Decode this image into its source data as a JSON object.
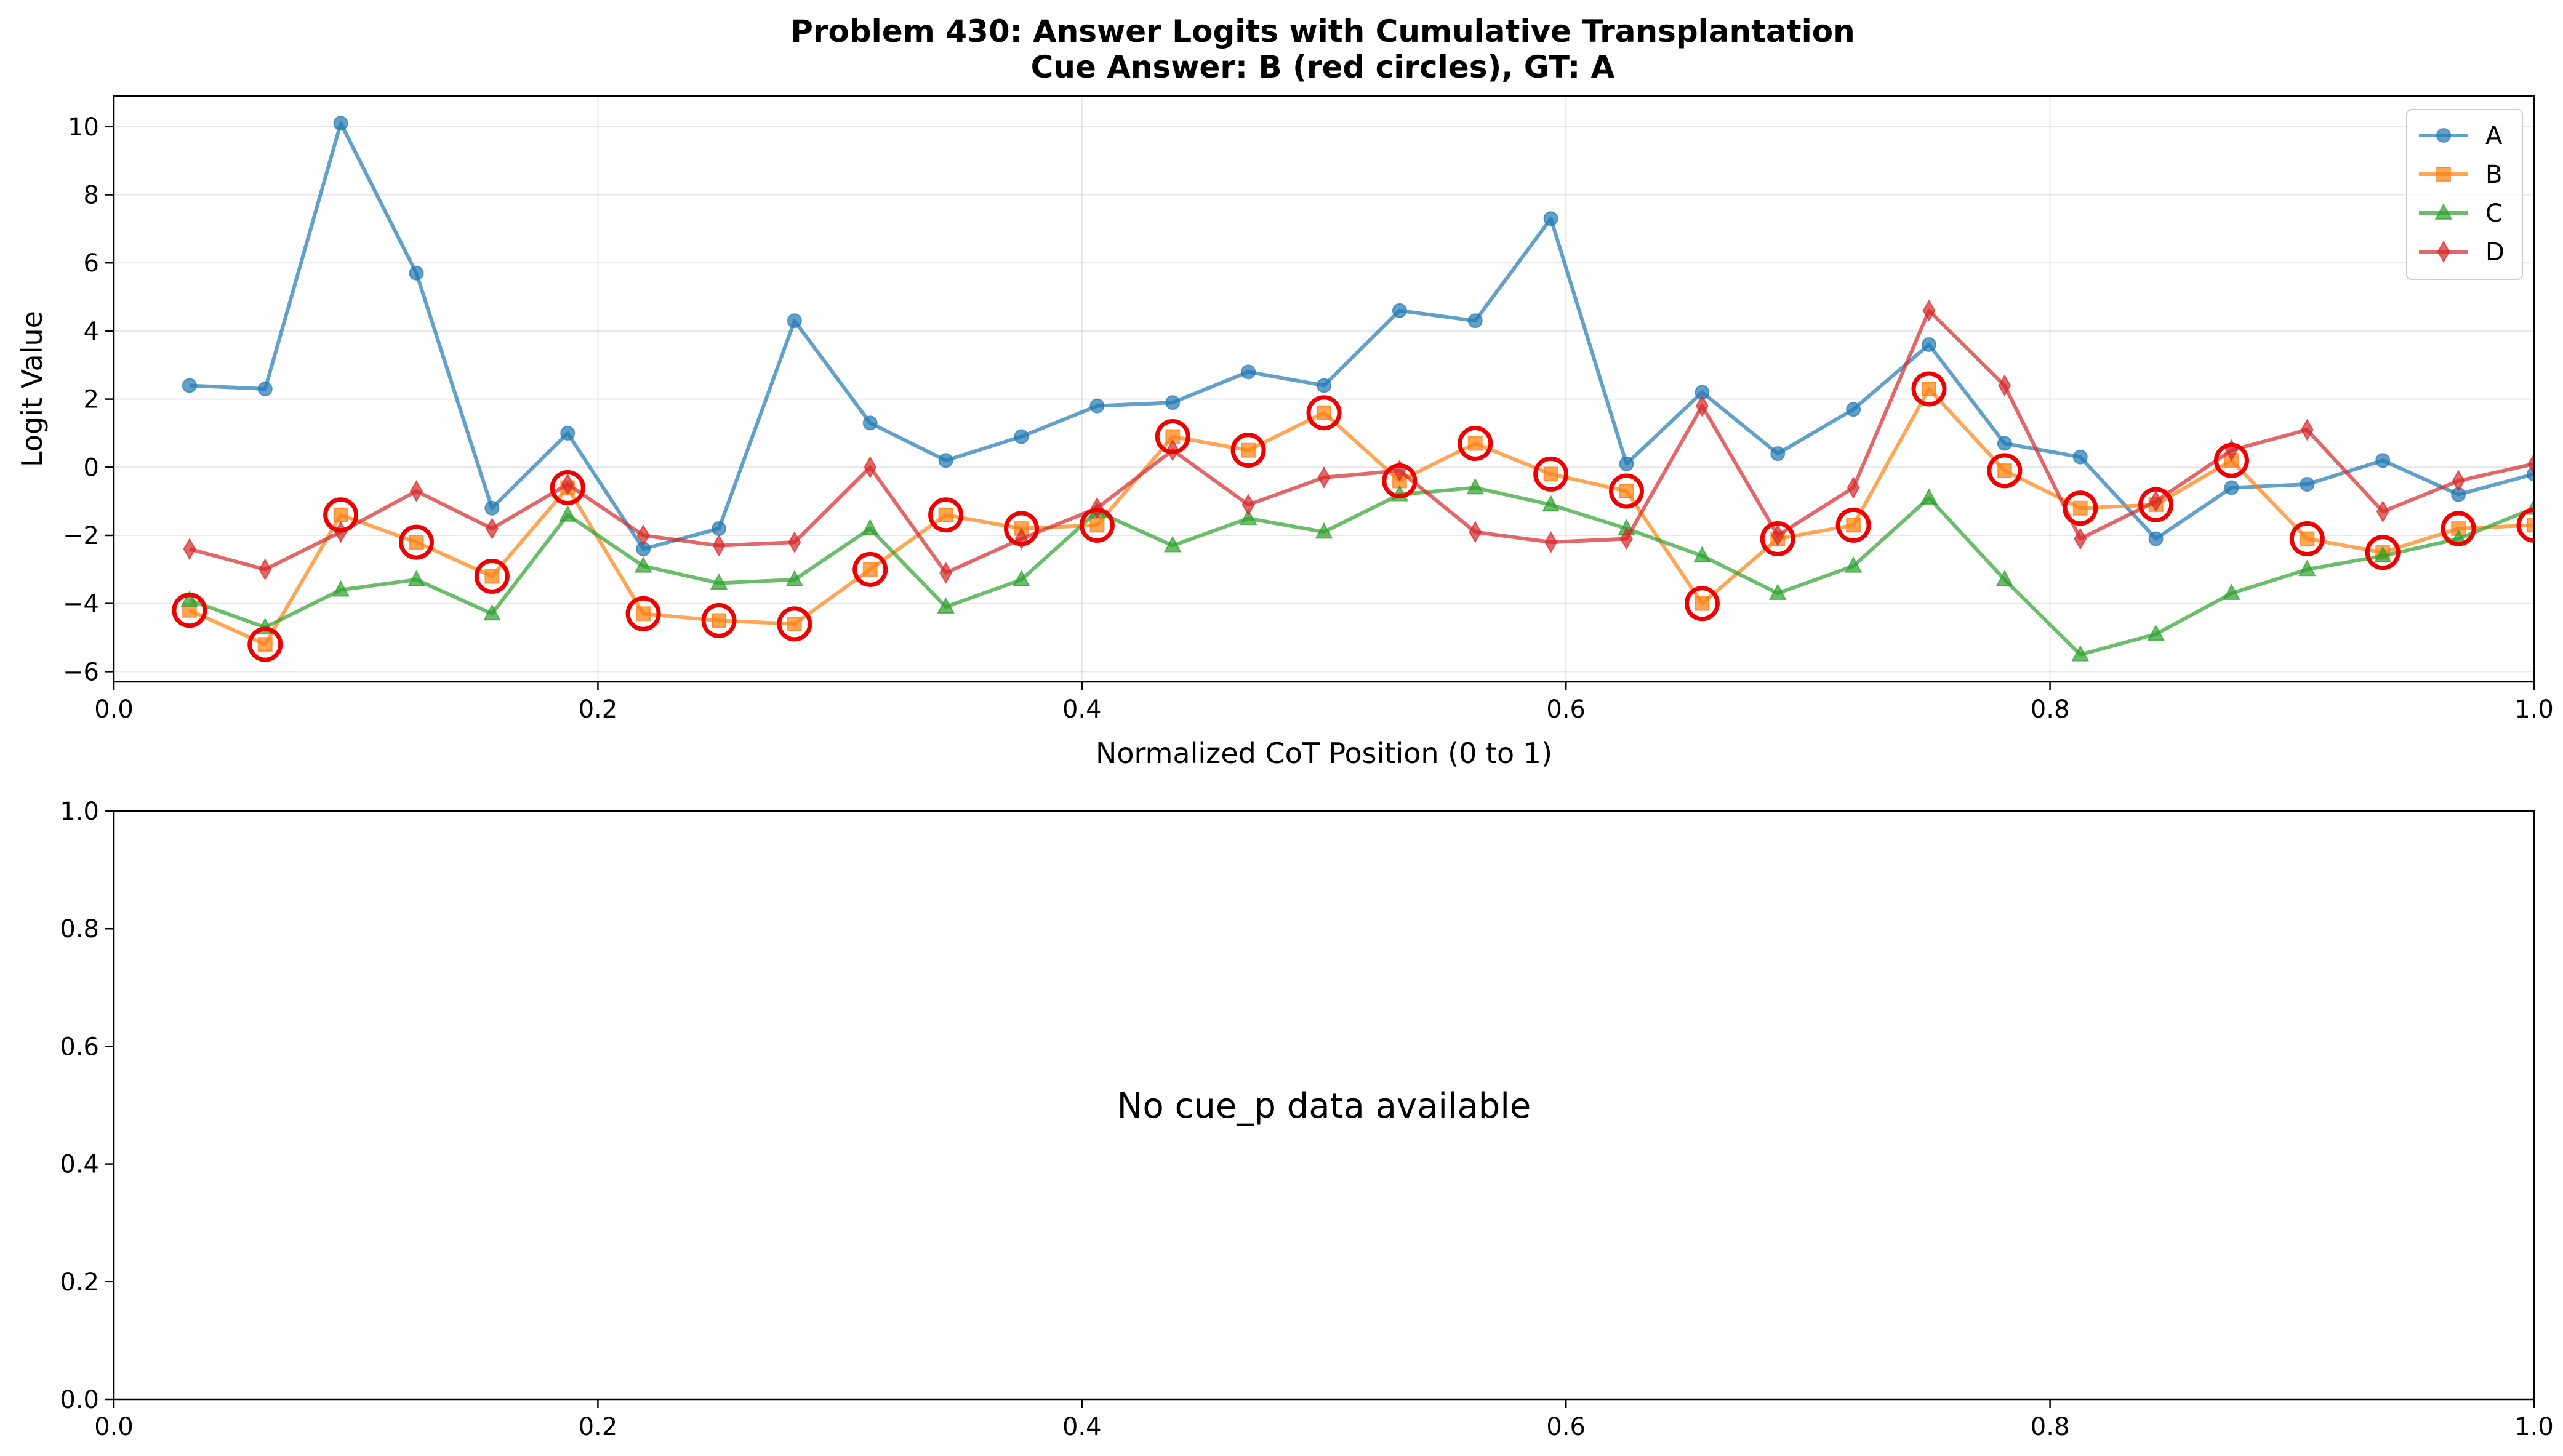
{
  "chart_data": [
    {
      "type": "line",
      "title": "Problem 430: Answer Logits with Cumulative Transplantation",
      "subtitle": "Cue Answer: B (red circles), GT: A",
      "xlabel": "Normalized CoT Position (0 to 1)",
      "ylabel": "Logit Value",
      "xlim": [
        0.0,
        1.0
      ],
      "ylim": [
        -6.3,
        10.9
      ],
      "xticks": [
        0.0,
        0.2,
        0.4,
        0.6,
        0.8,
        1.0
      ],
      "xtick_labels": [
        "0.0",
        "0.2",
        "0.4",
        "0.6",
        "0.8",
        "1.0"
      ],
      "yticks": [
        -6,
        -4,
        -2,
        0,
        2,
        4,
        6,
        8,
        10
      ],
      "ytick_labels": [
        "−6",
        "−4",
        "−2",
        "0",
        "2",
        "4",
        "6",
        "8",
        "10"
      ],
      "grid": true,
      "legend_position": "top-right",
      "x": [
        0.03125,
        0.0625,
        0.09375,
        0.125,
        0.15625,
        0.1875,
        0.21875,
        0.25,
        0.28125,
        0.3125,
        0.34375,
        0.375,
        0.40625,
        0.4375,
        0.46875,
        0.5,
        0.53125,
        0.5625,
        0.59375,
        0.625,
        0.65625,
        0.6875,
        0.71875,
        0.75,
        0.78125,
        0.8125,
        0.84375,
        0.875,
        0.90625,
        0.9375,
        0.96875,
        1.0
      ],
      "series": [
        {
          "name": "A",
          "color": "#1f77b4",
          "marker": "circle",
          "values": [
            2.4,
            2.3,
            10.1,
            5.7,
            -1.2,
            1.0,
            -2.4,
            -1.8,
            4.3,
            1.3,
            0.2,
            0.9,
            1.8,
            1.9,
            2.8,
            2.4,
            4.6,
            4.3,
            7.3,
            0.1,
            2.2,
            0.4,
            1.7,
            3.6,
            0.7,
            0.3,
            -2.1,
            -0.6,
            -0.5,
            0.2,
            -0.8,
            -0.2
          ]
        },
        {
          "name": "B",
          "color": "#ff7f0e",
          "marker": "square",
          "values": [
            -4.2,
            -5.2,
            -1.4,
            -2.2,
            -3.2,
            -0.6,
            -4.3,
            -4.5,
            -4.6,
            -3.0,
            -1.4,
            -1.8,
            -1.7,
            0.9,
            0.5,
            1.6,
            -0.4,
            0.7,
            -0.2,
            -0.7,
            -4.0,
            -2.1,
            -1.7,
            2.3,
            -0.1,
            -1.2,
            -1.1,
            0.2,
            -2.1,
            -2.5,
            -1.8,
            -1.7
          ]
        },
        {
          "name": "C",
          "color": "#2ca02c",
          "marker": "triangle",
          "values": [
            -3.9,
            -4.7,
            -3.6,
            -3.3,
            -4.3,
            -1.4,
            -2.9,
            -3.4,
            -3.3,
            -1.8,
            -4.1,
            -3.3,
            -1.3,
            -2.3,
            -1.5,
            -1.9,
            -0.8,
            -0.6,
            -1.1,
            -1.8,
            -2.6,
            -3.7,
            -2.9,
            -0.9,
            -3.3,
            -5.5,
            -4.9,
            -3.7,
            -3.0,
            -2.6,
            -2.1,
            -1.2
          ]
        },
        {
          "name": "D",
          "color": "#d62728",
          "marker": "diamond",
          "values": [
            -2.4,
            -3.0,
            -1.9,
            -0.7,
            -1.8,
            -0.5,
            -2.0,
            -2.3,
            -2.2,
            0.0,
            -3.1,
            -2.1,
            -1.2,
            0.5,
            -1.1,
            -0.3,
            -0.1,
            -1.9,
            -2.2,
            -2.1,
            1.8,
            -2.0,
            -0.6,
            4.6,
            2.4,
            -2.1,
            -1.0,
            0.5,
            1.1,
            -1.3,
            -0.4,
            0.1
          ]
        }
      ],
      "cue_series": "B",
      "cue_marker_color": "#ee0000"
    },
    {
      "type": "line",
      "xlim": [
        0.0,
        1.0
      ],
      "ylim": [
        0.0,
        1.0
      ],
      "xticks": [
        0.0,
        0.2,
        0.4,
        0.6,
        0.8,
        1.0
      ],
      "xtick_labels": [
        "0.0",
        "0.2",
        "0.4",
        "0.6",
        "0.8",
        "1.0"
      ],
      "yticks": [
        0.0,
        0.2,
        0.4,
        0.6,
        0.8,
        1.0
      ],
      "ytick_labels": [
        "0.0",
        "0.2",
        "0.4",
        "0.6",
        "0.8",
        "1.0"
      ],
      "annotation": "No cue_p data available"
    }
  ]
}
